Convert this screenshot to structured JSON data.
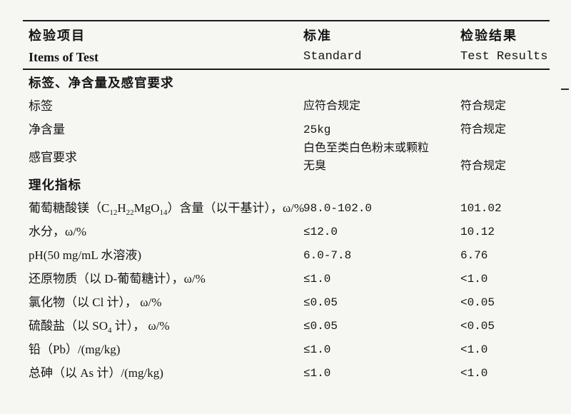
{
  "colors": {
    "ink": "#141414",
    "paper": "#f6f6f3",
    "rule": "#1a1a1a"
  },
  "columns": {
    "zh": [
      "检验项目",
      "标准",
      "检验结果"
    ],
    "en": [
      "Items of Test",
      "Standard",
      "Test Results"
    ]
  },
  "sections": {
    "labeling": {
      "title": "标签、净含量及感官要求"
    },
    "physchem": {
      "title": "理化指标"
    }
  },
  "rows": {
    "label": {
      "label": "标签",
      "standard": "应符合规定",
      "result": "符合规定"
    },
    "net_content": {
      "label": "净含量",
      "standard": "25kg",
      "result": "符合规定"
    },
    "sensory": {
      "label": "感官要求",
      "standard_line1": "白色至类白色粉末或颗粒",
      "standard_line2": "无臭",
      "result": "符合规定"
    },
    "assay": {
      "label_pre": "葡萄糖酸镁（C",
      "sub1": "12",
      "mid1": "H",
      "sub2": "22",
      "mid2": "MgO",
      "sub3": "14",
      "label_post": "）含量（以干基计），ω/%",
      "standard": "98.0-102.0",
      "result": "101.02"
    },
    "moisture": {
      "label": "水分，ω/%",
      "standard": "≤12.0",
      "result": "10.12"
    },
    "ph": {
      "label": "pH(50 mg/mL 水溶液)",
      "standard": "6.0-7.8",
      "result": "6.76"
    },
    "reducing": {
      "label": "还原物质（以 D-葡萄糖计），ω/%",
      "standard": "≤1.0",
      "result": "<1.0"
    },
    "chloride": {
      "label": "氯化物（以 Cl 计）， ω/%",
      "standard": "≤0.05",
      "result": "<0.05"
    },
    "sulfate": {
      "label_pre": "硫酸盐（以 SO",
      "sub1": "4",
      "label_post": " 计）， ω/%",
      "standard": "≤0.05",
      "result": "<0.05"
    },
    "lead": {
      "label": "铅（Pb）/(mg/kg)",
      "standard": "≤1.0",
      "result": "<1.0"
    },
    "arsenic": {
      "label": "总砷（以 As 计）/(mg/kg)",
      "standard": "≤1.0",
      "result": "<1.0"
    }
  }
}
